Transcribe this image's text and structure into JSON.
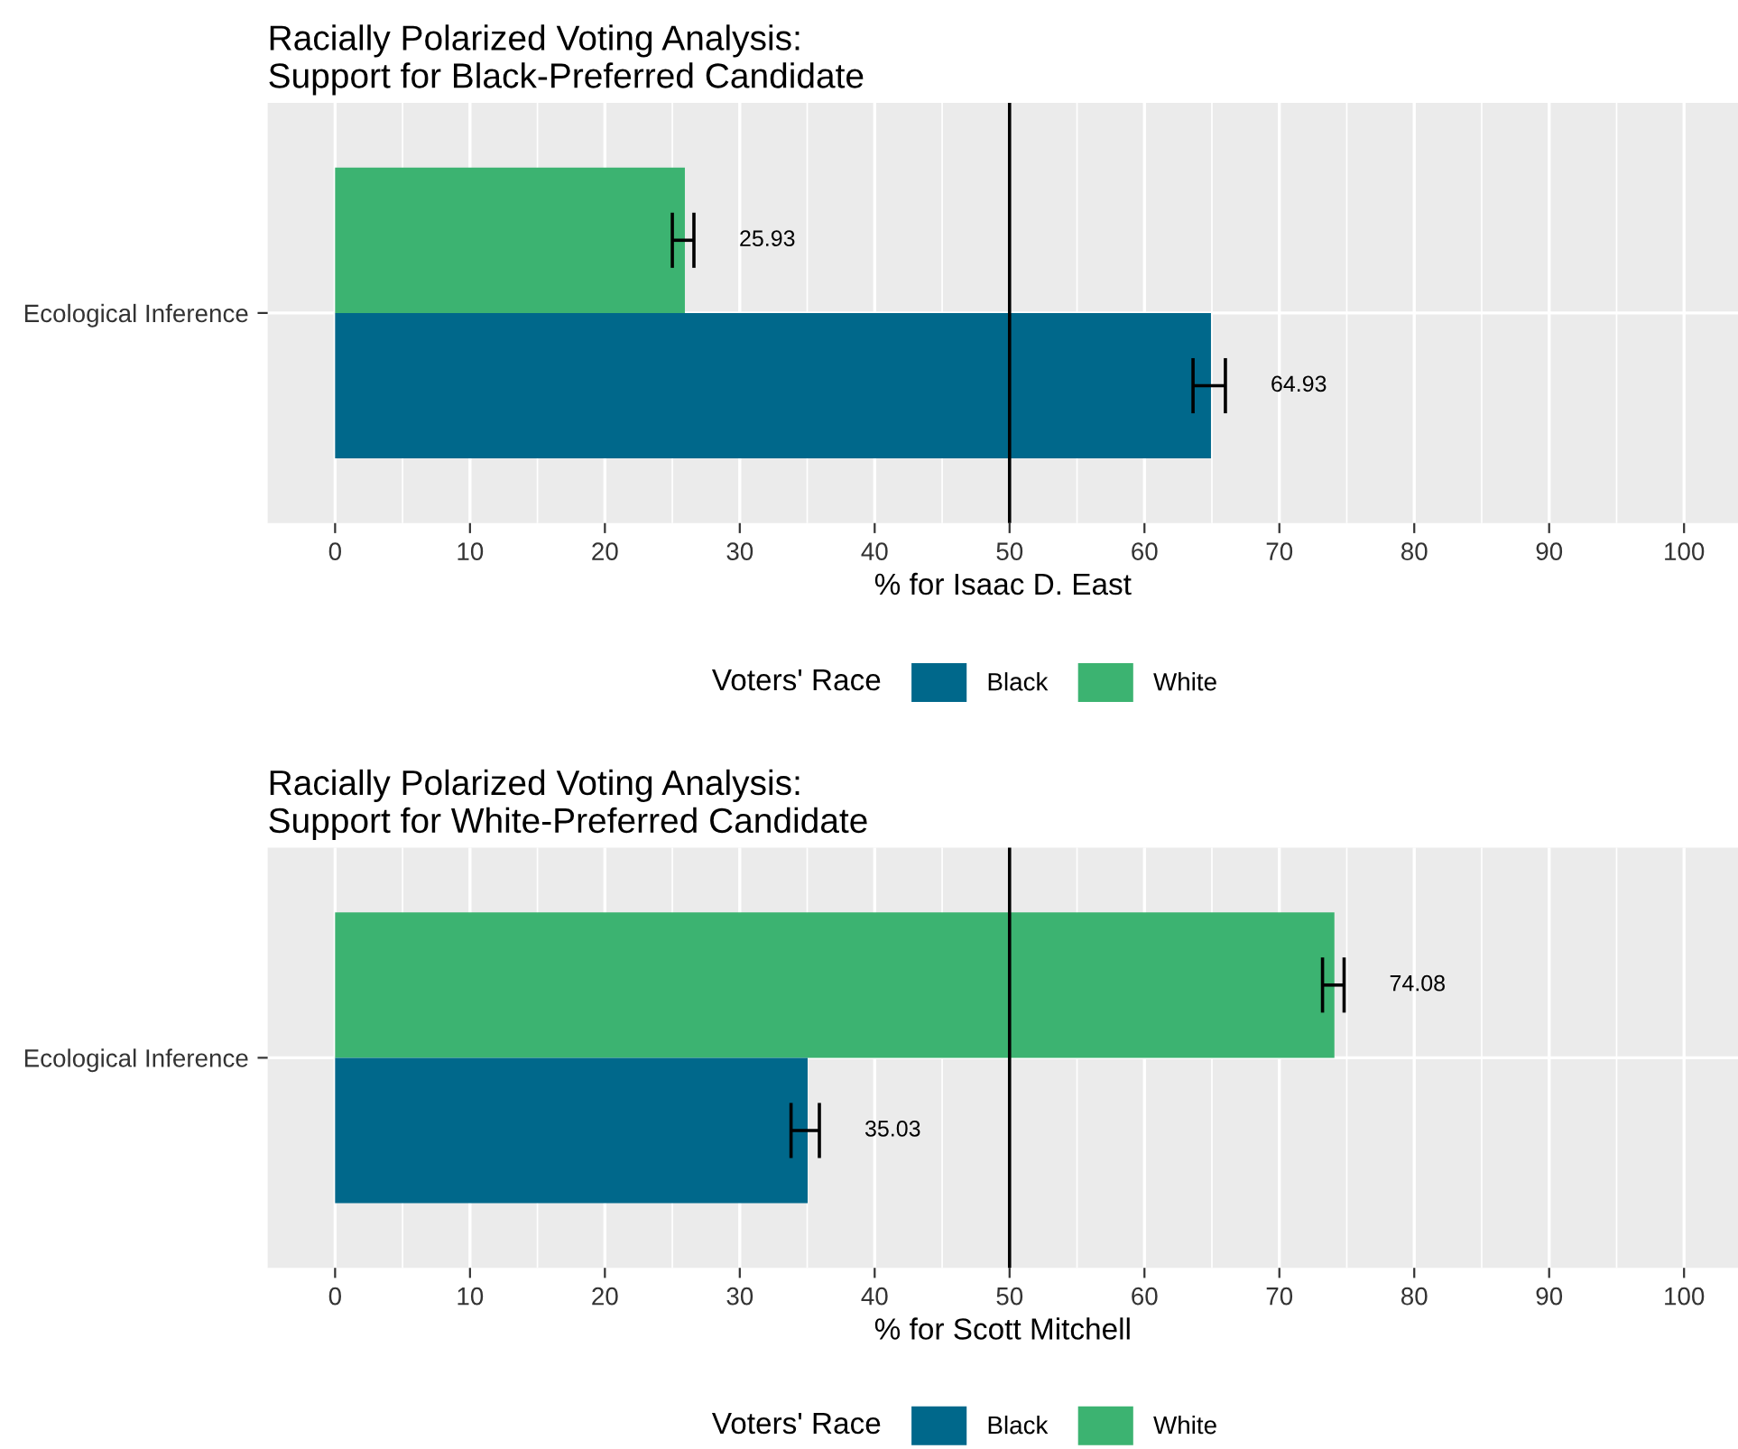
{
  "chart_data": [
    {
      "type": "bar",
      "orientation": "horizontal",
      "title": "Racially Polarized Voting Analysis:\nSupport for Black-Preferred Candidate",
      "xlabel": "% for Isaac D. East",
      "legend_title": "Voters' Race",
      "legend": "bottom",
      "grid": true,
      "categories": [
        "Ecological Inference"
      ],
      "series": [
        {
          "name": "White",
          "color": "#3cb371",
          "values": [
            25.93
          ],
          "errors": [
            [
              25.0,
              26.6
            ]
          ],
          "value_labels": [
            "25.93"
          ]
        },
        {
          "name": "Black",
          "color": "#00688b",
          "values": [
            64.93
          ],
          "errors": [
            [
              63.6,
              66.0
            ]
          ],
          "value_labels": [
            "64.93"
          ]
        }
      ],
      "xlim": [
        -5,
        104
      ],
      "xticks": [
        0,
        10,
        20,
        30,
        40,
        50,
        60,
        70,
        80,
        90,
        100
      ],
      "ref_lines": [
        {
          "axis": "x",
          "value": 50,
          "color": "#000000"
        }
      ]
    },
    {
      "type": "bar",
      "orientation": "horizontal",
      "title": "Racially Polarized Voting Analysis:\nSupport for White-Preferred Candidate",
      "xlabel": "% for Scott Mitchell",
      "legend_title": "Voters' Race",
      "legend": "bottom",
      "grid": true,
      "categories": [
        "Ecological Inference"
      ],
      "series": [
        {
          "name": "White",
          "color": "#3cb371",
          "values": [
            74.08
          ],
          "errors": [
            [
              73.2,
              74.8
            ]
          ],
          "value_labels": [
            "74.08"
          ]
        },
        {
          "name": "Black",
          "color": "#00688b",
          "values": [
            35.03
          ],
          "errors": [
            [
              33.8,
              35.9
            ]
          ],
          "value_labels": [
            "35.03"
          ]
        }
      ],
      "xlim": [
        -5,
        104
      ],
      "xticks": [
        0,
        10,
        20,
        30,
        40,
        50,
        60,
        70,
        80,
        90,
        100
      ],
      "ref_lines": [
        {
          "axis": "x",
          "value": 50,
          "color": "#000000"
        }
      ]
    }
  ]
}
